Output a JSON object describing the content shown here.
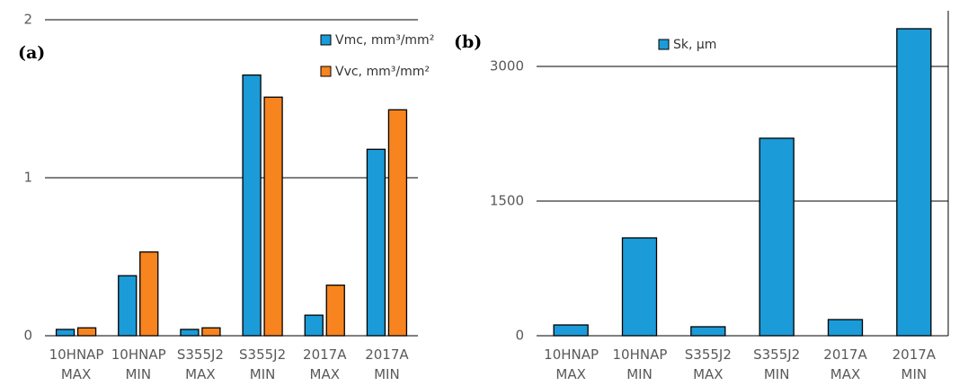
{
  "chart_data": [
    {
      "type": "bar",
      "panel_label": "(a)",
      "categories": [
        "10HNAP MAX",
        "10HNAP MIN",
        "S355J2 MAX",
        "S355J2 MIN",
        "2017A MAX",
        "2017A MIN"
      ],
      "series": [
        {
          "name": "Vmc, mm³/mm²",
          "color": "#1b9bd7",
          "values": [
            0.04,
            0.38,
            0.04,
            1.65,
            0.13,
            1.18
          ]
        },
        {
          "name": "Vvc, mm³/mm²",
          "color": "#f7841f",
          "values": [
            0.05,
            0.53,
            0.05,
            1.51,
            0.32,
            1.43
          ]
        }
      ],
      "ylim": [
        0,
        2
      ],
      "yticks": [
        0,
        1,
        2
      ],
      "grid": true
    },
    {
      "type": "bar",
      "panel_label": "(b)",
      "categories": [
        "10HNAP MAX",
        "10HNAP MIN",
        "S355J2 MAX",
        "S355J2 MIN",
        "2017A MAX",
        "2017A MIN"
      ],
      "series": [
        {
          "name": "Sk, µm",
          "color": "#1b9bd7",
          "values": [
            120,
            1090,
            100,
            2200,
            180,
            3420
          ]
        }
      ],
      "ylim": [
        0,
        3620
      ],
      "yticks": [
        0,
        1500,
        3000
      ],
      "grid": true
    }
  ]
}
